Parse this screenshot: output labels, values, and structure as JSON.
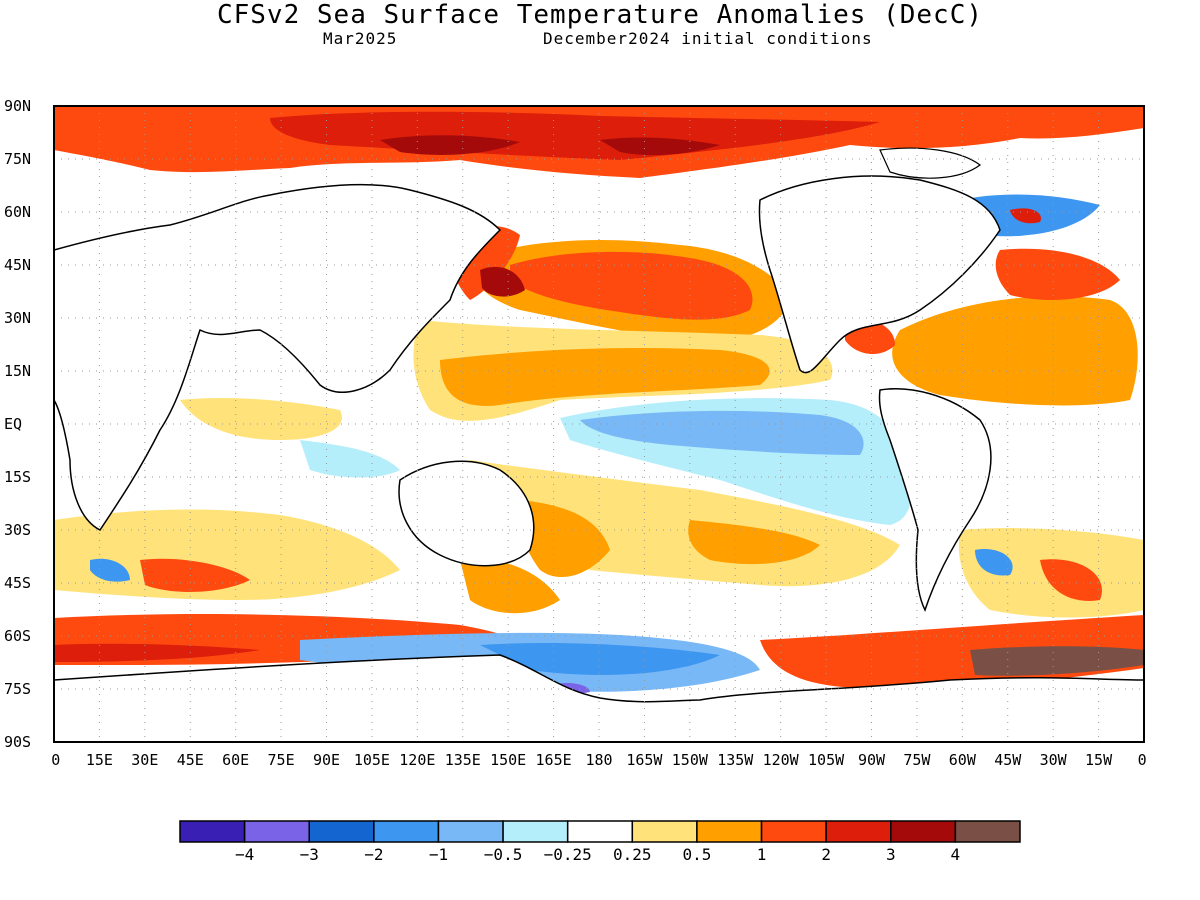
{
  "header": {
    "title": "CFSv2 Sea Surface Temperature Anomalies (DecC)",
    "valid_month": "Mar2025",
    "initial_conditions": "December2024 initial conditions"
  },
  "map": {
    "lat_labels": [
      "90N",
      "75N",
      "60N",
      "45N",
      "30N",
      "15N",
      "EQ",
      "15S",
      "30S",
      "45S",
      "60S",
      "75S",
      "90S"
    ],
    "lon_labels": [
      "0",
      "15E",
      "30E",
      "45E",
      "60E",
      "75E",
      "90E",
      "105E",
      "120E",
      "135E",
      "150E",
      "165E",
      "180",
      "165W",
      "150W",
      "135W",
      "120W",
      "105W",
      "90W",
      "75W",
      "60W",
      "45W",
      "30W",
      "15W",
      "0"
    ],
    "lon_label_display": [
      "0",
      "15E",
      "30E",
      "45E",
      "60E",
      "75E",
      "90E",
      "105E",
      "120E",
      "135E",
      "150E",
      "165E",
      "180",
      "165W",
      "150W",
      "135W",
      "120W",
      "105W",
      "90W",
      "75W",
      "60W",
      "45W",
      "30W",
      "15W",
      "0"
    ],
    "land_color": "#ffffff",
    "grid": "dotted"
  },
  "colorbar": {
    "colors": [
      "#3a1fb4",
      "#7b63e8",
      "#1565d0",
      "#3d96f0",
      "#78b8f6",
      "#b4eefa",
      "#ffffff",
      "#ffe37a",
      "#ffa000",
      "#ff4a0f",
      "#dc1e0a",
      "#a50a0a",
      "#7a5046"
    ],
    "labels": [
      "−4",
      "−3",
      "−2",
      "−1",
      "−0.5",
      "−0.25",
      "0.25",
      "0.5",
      "1",
      "2",
      "3",
      "4"
    ]
  }
}
